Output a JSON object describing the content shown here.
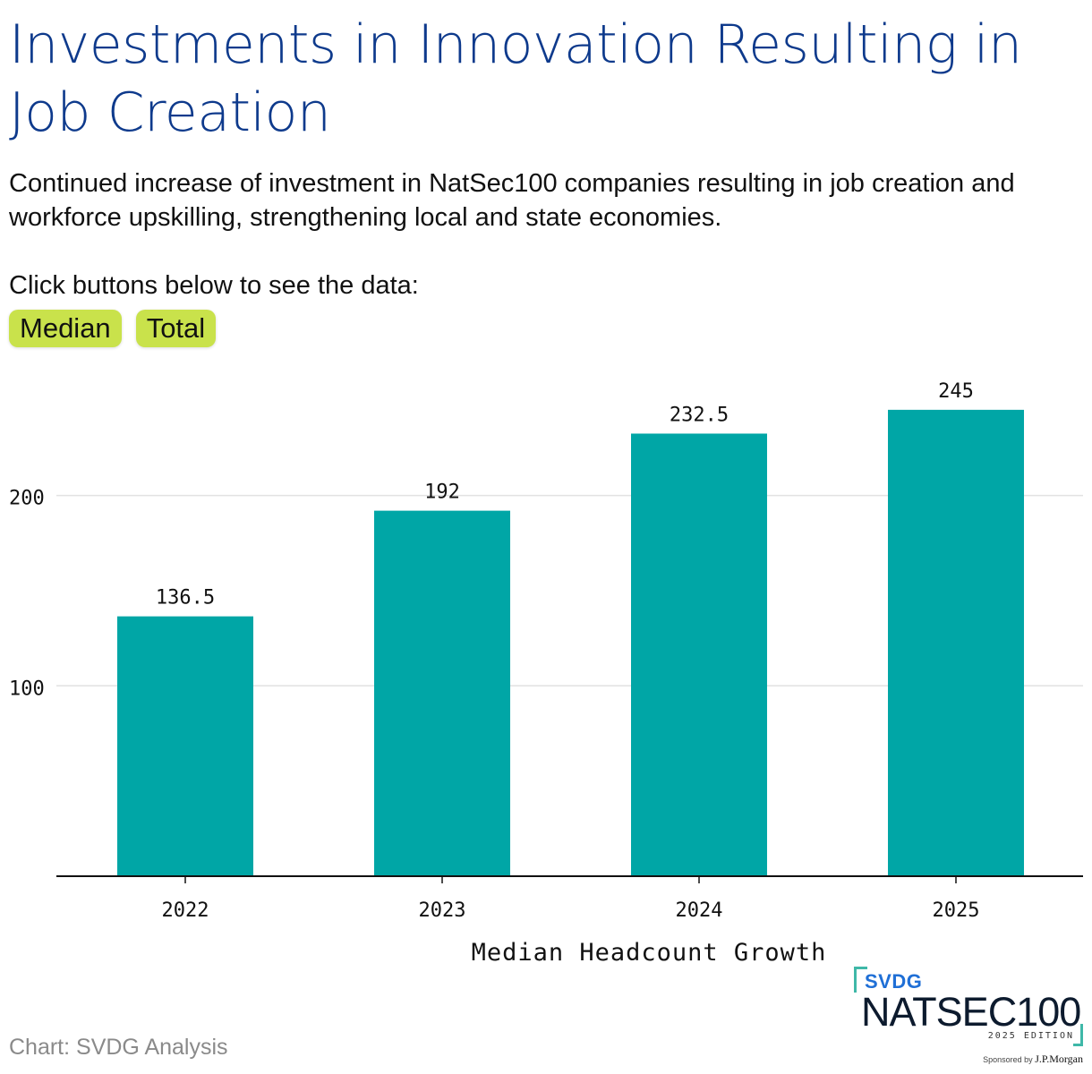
{
  "header": {
    "title": "Investments in Innovation Resulting in Job Creation",
    "subtitle": "Continued increase of investment in NatSec100 companies resulting in job creation and workforce upskilling, strengthening local and state economies."
  },
  "controls": {
    "prompt": "Click buttons below to see the data:",
    "median_label": "Median",
    "total_label": "Total"
  },
  "colors": {
    "bar": "#00a6a6",
    "title": "#0e3a8c",
    "button": "#c9e24b"
  },
  "chart_data": {
    "type": "bar",
    "title": "",
    "categories": [
      "2022",
      "2023",
      "2024",
      "2025"
    ],
    "values": [
      136.5,
      192,
      232.5,
      245
    ],
    "value_labels": [
      "136.5",
      "192",
      "232.5",
      "245"
    ],
    "xlabel": "Median Headcount Growth",
    "ylabel": "",
    "yticks": [
      100,
      200
    ],
    "ylim": [
      0,
      245
    ],
    "grid": true
  },
  "footer": {
    "source": "Chart: SVDG Analysis",
    "logo_brand": "SVDG",
    "logo_name": "NATSEC100",
    "logo_edition": "2025 EDITION",
    "sponsor_prefix": "Sponsored by",
    "sponsor_name": "J.P.Morgan"
  }
}
